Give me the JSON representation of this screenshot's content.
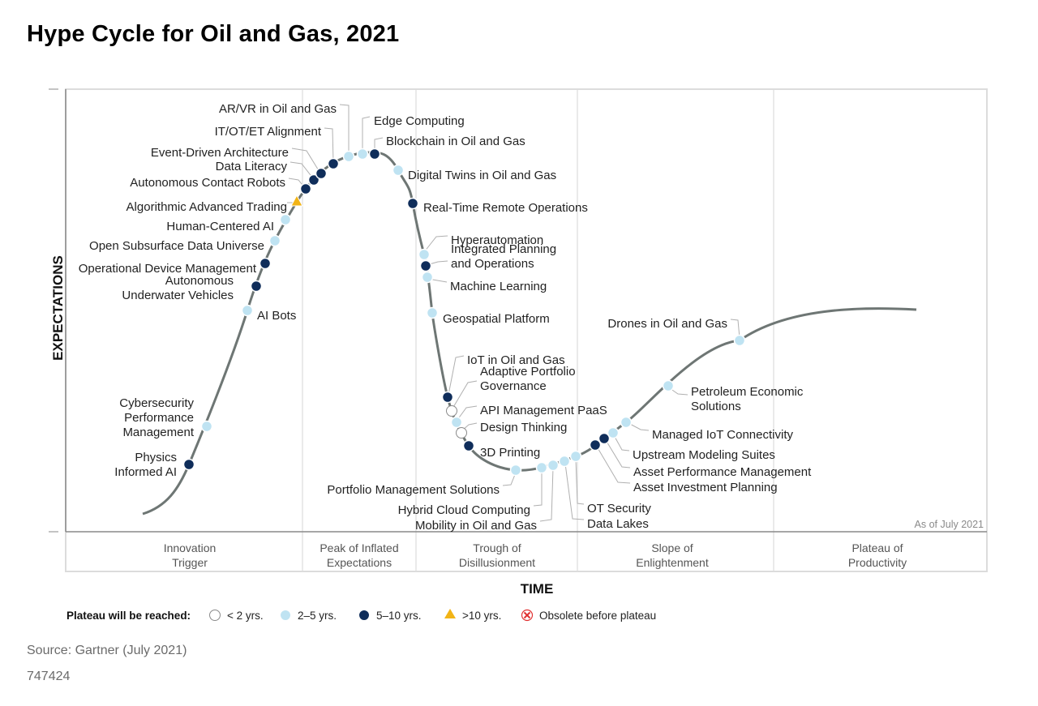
{
  "title": "Hype Cycle for Oil and Gas, 2021",
  "source": "Source: Gartner (July 2021)",
  "doc_id": "747424",
  "chart_data": {
    "type": "hype-cycle",
    "ylabel": "EXPECTATIONS",
    "xlabel": "TIME",
    "as_of": "As of July 2021",
    "phases": [
      [
        "Innovation",
        "Trigger"
      ],
      [
        "Peak of Inflated",
        "Expectations"
      ],
      [
        "Trough of",
        "Disillusionment"
      ],
      [
        "Slope of",
        "Enlightenment"
      ],
      [
        "Plateau of",
        "Productivity"
      ]
    ],
    "legend_title": "Plateau will be reached:",
    "legend": [
      {
        "key": "lt2",
        "label": "< 2 yrs."
      },
      {
        "key": "2to5",
        "label": "2–5 yrs."
      },
      {
        "key": "5to10",
        "label": "5–10 yrs."
      },
      {
        "key": "gt10",
        "label": ">10 yrs."
      },
      {
        "key": "obsolete",
        "label": "Obsolete before plateau"
      }
    ],
    "colors": {
      "lt2": "#ffffff",
      "2to5": "#bfe3f2",
      "5to10": "#0f2d5a",
      "gt10": "#f2b416",
      "obsolete": "#e03030",
      "curve": "#6e7674"
    },
    "technologies": [
      {
        "name": [
          "Physics",
          "Informed AI"
        ],
        "category": "5to10"
      },
      {
        "name": [
          "Cybersecurity",
          "Performance",
          "Management"
        ],
        "category": "2to5"
      },
      {
        "name": [
          "AI Bots"
        ],
        "category": "2to5"
      },
      {
        "name": [
          "Autonomous",
          "Underwater Vehicles"
        ],
        "category": "5to10"
      },
      {
        "name": [
          "Operational Device Management"
        ],
        "category": "5to10"
      },
      {
        "name": [
          "Open Subsurface Data Universe"
        ],
        "category": "2to5"
      },
      {
        "name": [
          "Human-Centered AI"
        ],
        "category": "2to5"
      },
      {
        "name": [
          "Algorithmic Advanced Trading"
        ],
        "category": "gt10"
      },
      {
        "name": [
          "Autonomous Contact Robots"
        ],
        "category": "5to10"
      },
      {
        "name": [
          "Data Literacy"
        ],
        "category": "5to10"
      },
      {
        "name": [
          "Event-Driven Architecture"
        ],
        "category": "5to10"
      },
      {
        "name": [
          "IT/OT/ET Alignment"
        ],
        "category": "5to10"
      },
      {
        "name": [
          "AR/VR in Oil and Gas"
        ],
        "category": "2to5"
      },
      {
        "name": [
          "Edge Computing"
        ],
        "category": "2to5"
      },
      {
        "name": [
          "Blockchain in Oil and Gas"
        ],
        "category": "5to10"
      },
      {
        "name": [
          "Digital Twins in Oil and Gas"
        ],
        "category": "2to5"
      },
      {
        "name": [
          "Real-Time Remote Operations"
        ],
        "category": "5to10"
      },
      {
        "name": [
          "Hyperautomation"
        ],
        "category": "2to5"
      },
      {
        "name": [
          "Integrated Planning",
          "and Operations"
        ],
        "category": "5to10"
      },
      {
        "name": [
          "Machine Learning"
        ],
        "category": "2to5"
      },
      {
        "name": [
          "Geospatial Platform"
        ],
        "category": "2to5"
      },
      {
        "name": [
          "IoT in Oil and Gas"
        ],
        "category": "5to10"
      },
      {
        "name": [
          "Adaptive Portfolio",
          "Governance"
        ],
        "category": "lt2"
      },
      {
        "name": [
          "API Management PaaS"
        ],
        "category": "2to5"
      },
      {
        "name": [
          "Design Thinking"
        ],
        "category": "lt2"
      },
      {
        "name": [
          "3D Printing"
        ],
        "category": "5to10"
      },
      {
        "name": [
          "Portfolio Management Solutions"
        ],
        "category": "2to5"
      },
      {
        "name": [
          "Hybrid Cloud Computing"
        ],
        "category": "2to5"
      },
      {
        "name": [
          "Mobility in Oil and Gas"
        ],
        "category": "2to5"
      },
      {
        "name": [
          "Data Lakes"
        ],
        "category": "2to5"
      },
      {
        "name": [
          "OT Security"
        ],
        "category": "2to5"
      },
      {
        "name": [
          "Asset Investment Planning"
        ],
        "category": "5to10"
      },
      {
        "name": [
          "Asset Performance Management"
        ],
        "category": "5to10"
      },
      {
        "name": [
          "Upstream Modeling Suites"
        ],
        "category": "2to5"
      },
      {
        "name": [
          "Managed IoT Connectivity"
        ],
        "category": "2to5"
      },
      {
        "name": [
          "Petroleum Economic",
          "Solutions"
        ],
        "category": "2to5"
      },
      {
        "name": [
          "Drones in Oil and Gas"
        ],
        "category": "2to5"
      }
    ]
  }
}
